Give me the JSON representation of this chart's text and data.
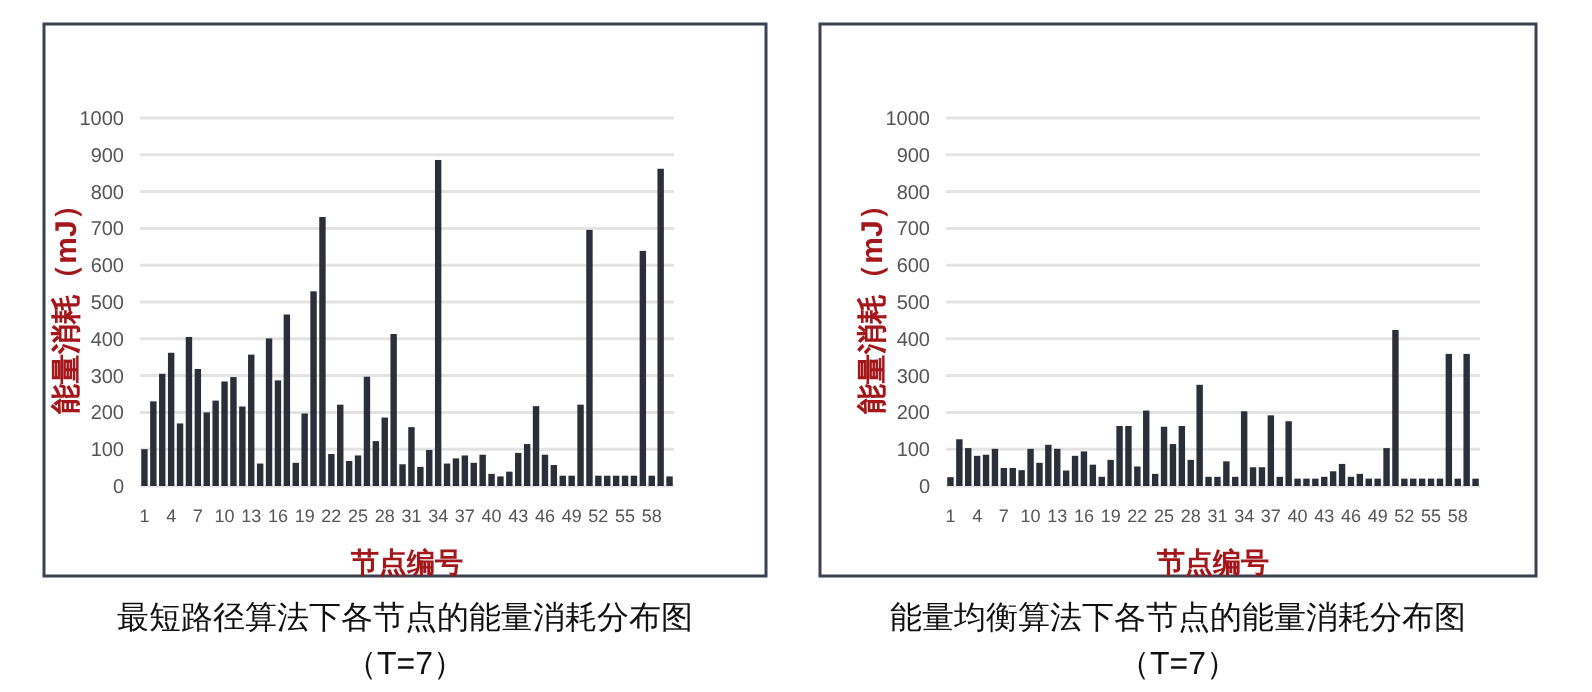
{
  "chart_data": [
    {
      "type": "bar",
      "title": "最短路径算法下各节点的能量消耗分布图",
      "subtitle": "（T=7）",
      "xlabel": "节点编号",
      "ylabel": "能量消耗（mJ）",
      "color": "#2b2f3a",
      "ylim": [
        0,
        1000
      ],
      "yticks": [
        0,
        100,
        200,
        300,
        400,
        500,
        600,
        700,
        800,
        900,
        1000
      ],
      "grid": "y",
      "categories": [
        "1",
        null,
        null,
        "4",
        null,
        null,
        "7",
        null,
        null,
        "10",
        null,
        null,
        "13",
        null,
        null,
        "16",
        null,
        null,
        "19",
        null,
        null,
        "22",
        null,
        null,
        "25",
        null,
        null,
        "28",
        null,
        null,
        "31",
        null,
        null,
        "34",
        null,
        null,
        "37",
        null,
        null,
        "40",
        null,
        null,
        "43",
        null,
        null,
        "46",
        null,
        null,
        "49",
        null,
        null,
        "52",
        null,
        null,
        "55",
        null,
        null,
        "58",
        null,
        null
      ],
      "values": [
        100,
        230,
        305,
        362,
        170,
        405,
        318,
        200,
        232,
        284,
        296,
        216,
        357,
        61,
        401,
        287,
        466,
        63,
        197,
        529,
        731,
        87,
        221,
        68,
        83,
        297,
        122,
        186,
        413,
        59,
        160,
        52,
        98,
        886,
        61,
        75,
        83,
        63,
        85,
        33,
        26,
        39,
        90,
        114,
        217,
        85,
        57,
        28,
        28,
        221,
        696,
        28,
        28,
        28,
        28,
        28,
        639,
        28,
        862,
        26
      ]
    },
    {
      "type": "bar",
      "title": "能量均衡算法下各节点的能量消耗分布图",
      "subtitle": "（T=7）",
      "xlabel": "节点编号",
      "ylabel": "能量消耗（mJ）",
      "color": "#2b2f3a",
      "ylim": [
        0,
        1000
      ],
      "yticks": [
        0,
        100,
        200,
        300,
        400,
        500,
        600,
        700,
        800,
        900,
        1000
      ],
      "grid": "y",
      "categories": [
        "1",
        null,
        null,
        "4",
        null,
        null,
        "7",
        null,
        null,
        "10",
        null,
        null,
        "13",
        null,
        null,
        "16",
        null,
        null,
        "19",
        null,
        null,
        "22",
        null,
        null,
        "25",
        null,
        null,
        "28",
        null,
        null,
        "31",
        null,
        null,
        "34",
        null,
        null,
        "37",
        null,
        null,
        "40",
        null,
        null,
        "43",
        null,
        null,
        "46",
        null,
        null,
        "49",
        null,
        null,
        "52",
        null,
        null,
        "55",
        null,
        null,
        "58",
        null,
        null
      ],
      "values": [
        24,
        127,
        103,
        82,
        85,
        101,
        49,
        49,
        43,
        101,
        63,
        112,
        101,
        42,
        82,
        94,
        58,
        25,
        71,
        163,
        163,
        53,
        205,
        33,
        161,
        114,
        163,
        71,
        275,
        25,
        25,
        67,
        25,
        203,
        51,
        51,
        192,
        25,
        176,
        20,
        20,
        20,
        25,
        40,
        60,
        25,
        33,
        20,
        20,
        103,
        424,
        20,
        20,
        20,
        20,
        20,
        359,
        20,
        359,
        20
      ]
    }
  ]
}
